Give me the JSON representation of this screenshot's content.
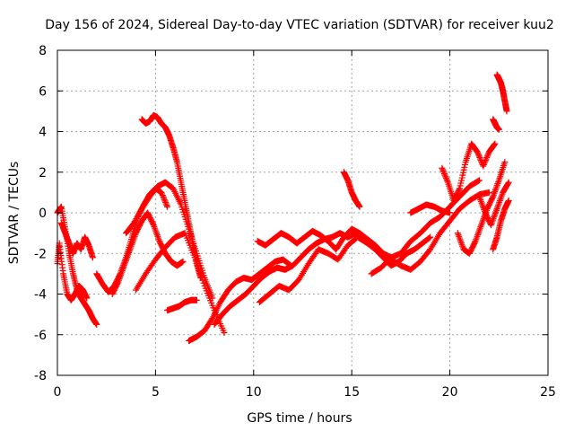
{
  "chart_data": {
    "type": "scatter",
    "title": "Day 156 of 2024, Sidereal Day-to-day VTEC variation (SDTVAR) for receiver kuu2",
    "xlabel": "GPS time / hours",
    "ylabel": "SDTVAR / TECUs",
    "xlim": [
      0,
      25
    ],
    "ylim": [
      -8,
      8
    ],
    "xticks": [
      "0",
      "5",
      "10",
      "15",
      "20",
      "25"
    ],
    "yticks": [
      "8",
      "6",
      "4",
      "2",
      "0",
      "-2",
      "-4",
      "-6",
      "-8"
    ],
    "grid": true,
    "marker": "+",
    "color": "#ff0000",
    "series": [
      {
        "name": "track-1",
        "x": [
          0.0,
          0.2,
          0.4,
          0.6,
          0.8,
          1.0,
          1.2,
          1.4,
          1.6,
          1.8,
          2.0
        ],
        "y": [
          0.0,
          0.3,
          -0.8,
          -2.0,
          -3.0,
          -3.8,
          -4.2,
          -4.5,
          -4.8,
          -5.2,
          -5.5
        ]
      },
      {
        "name": "track-2",
        "x": [
          0.0,
          0.1,
          0.3,
          0.5,
          0.7,
          0.9,
          1.1,
          1.3,
          1.5
        ],
        "y": [
          -2.5,
          -1.5,
          -3.0,
          -4.0,
          -4.3,
          -4.0,
          -3.6,
          -3.8,
          -4.2
        ]
      },
      {
        "name": "track-3",
        "x": [
          0.2,
          0.4,
          0.6,
          0.8,
          1.0,
          1.2,
          1.4,
          1.6,
          1.8
        ],
        "y": [
          -0.5,
          -1.0,
          -1.5,
          -2.0,
          -1.5,
          -1.8,
          -1.2,
          -1.6,
          -2.2
        ]
      },
      {
        "name": "track-4",
        "x": [
          2.0,
          2.3,
          2.6,
          2.9,
          3.2,
          3.5,
          3.8,
          4.1,
          4.4,
          4.7,
          5.0,
          5.3,
          5.6
        ],
        "y": [
          -3.0,
          -3.5,
          -3.9,
          -3.6,
          -3.0,
          -2.2,
          -1.2,
          -0.2,
          0.4,
          0.9,
          1.2,
          1.0,
          0.3
        ]
      },
      {
        "name": "track-5",
        "x": [
          2.8,
          3.1,
          3.4,
          3.7,
          4.0,
          4.3,
          4.6,
          4.9,
          5.2,
          5.5,
          5.8,
          6.1,
          6.4
        ],
        "y": [
          -4.0,
          -3.4,
          -2.6,
          -1.8,
          -1.0,
          -0.4,
          0.0,
          -0.6,
          -1.4,
          -2.0,
          -2.4,
          -2.6,
          -2.4
        ]
      },
      {
        "name": "track-6",
        "x": [
          4.3,
          4.5,
          4.7,
          4.9,
          5.1,
          5.3,
          5.5,
          5.7,
          5.9,
          6.1,
          6.3,
          6.5,
          6.7,
          6.9,
          7.1,
          7.3
        ],
        "y": [
          4.6,
          4.4,
          4.5,
          4.8,
          4.7,
          4.4,
          4.2,
          3.8,
          3.2,
          2.5,
          1.5,
          0.5,
          -0.5,
          -1.5,
          -2.5,
          -3.2
        ]
      },
      {
        "name": "track-7",
        "x": [
          3.5,
          3.9,
          4.3,
          4.7,
          5.1,
          5.5,
          5.9,
          6.3,
          6.7,
          7.1,
          7.5,
          7.9
        ],
        "y": [
          -1.0,
          -0.5,
          0.2,
          0.8,
          1.3,
          1.5,
          1.2,
          0.4,
          -0.8,
          -2.0,
          -3.2,
          -4.2
        ]
      },
      {
        "name": "track-8",
        "x": [
          4.0,
          4.5,
          5.0,
          5.5,
          6.0,
          6.5,
          7.0,
          7.5,
          8.0,
          8.5
        ],
        "y": [
          -3.8,
          -3.0,
          -2.3,
          -1.7,
          -1.2,
          -1.0,
          -2.2,
          -3.6,
          -4.8,
          -5.9
        ]
      },
      {
        "name": "track-9",
        "x": [
          5.6,
          5.9,
          6.2,
          6.5,
          6.8,
          7.1
        ],
        "y": [
          -4.8,
          -4.7,
          -4.6,
          -4.4,
          -4.3,
          -4.3
        ]
      },
      {
        "name": "track-10",
        "x": [
          6.7,
          7.1,
          7.5,
          7.9,
          8.3,
          8.7,
          9.1,
          9.5,
          9.9,
          10.3,
          10.7,
          11.1,
          11.5,
          11.9
        ],
        "y": [
          -6.3,
          -6.1,
          -5.8,
          -5.2,
          -4.4,
          -3.8,
          -3.4,
          -3.2,
          -3.3,
          -3.0,
          -2.7,
          -2.4,
          -2.3,
          -2.6
        ]
      },
      {
        "name": "track-11",
        "x": [
          8.0,
          8.4,
          8.8,
          9.2,
          9.6,
          10.0,
          10.4,
          10.8,
          11.2,
          11.6,
          12.0,
          12.4,
          12.8,
          13.2,
          13.6,
          14.0,
          14.4,
          14.8,
          15.2,
          15.6
        ],
        "y": [
          -5.5,
          -5.0,
          -4.6,
          -4.3,
          -4.0,
          -3.6,
          -3.2,
          -2.9,
          -2.7,
          -2.8,
          -2.6,
          -2.2,
          -1.8,
          -1.5,
          -1.3,
          -1.2,
          -1.0,
          -1.2,
          -1.0,
          -1.3
        ]
      },
      {
        "name": "track-12",
        "x": [
          10.3,
          10.8,
          11.3,
          11.8,
          12.3,
          12.8,
          13.3,
          13.8,
          14.3,
          14.8,
          15.3,
          15.8
        ],
        "y": [
          -4.4,
          -4.0,
          -3.6,
          -3.8,
          -3.3,
          -2.5,
          -1.8,
          -2.0,
          -2.3,
          -1.6,
          -1.2,
          -1.5
        ]
      },
      {
        "name": "track-13",
        "x": [
          10.2,
          10.6,
          11.0,
          11.4,
          11.8,
          12.2,
          12.6,
          13.0,
          13.4,
          13.8,
          14.2,
          14.6,
          15.0,
          15.4,
          15.8,
          16.2,
          16.6,
          17.0
        ],
        "y": [
          -1.4,
          -1.6,
          -1.3,
          -1.0,
          -1.2,
          -1.5,
          -1.2,
          -0.9,
          -1.1,
          -1.4,
          -1.8,
          -1.2,
          -0.8,
          -1.0,
          -1.3,
          -1.6,
          -2.0,
          -2.2
        ]
      },
      {
        "name": "track-14",
        "x": [
          14.6,
          14.8,
          15.0,
          15.2,
          15.4
        ],
        "y": [
          2.0,
          1.6,
          1.0,
          0.6,
          0.3
        ]
      },
      {
        "name": "track-15",
        "x": [
          16.0,
          16.5,
          17.0,
          17.5,
          18.0,
          18.5,
          19.0,
          19.5,
          20.0,
          20.5,
          21.0,
          21.5
        ],
        "y": [
          -3.0,
          -2.7,
          -2.2,
          -2.0,
          -1.4,
          -1.0,
          -0.5,
          -0.2,
          0.3,
          0.8,
          1.3,
          1.6
        ]
      },
      {
        "name": "track-16",
        "x": [
          15.8,
          16.2,
          16.6,
          17.0,
          17.4,
          17.8,
          18.2,
          18.6,
          19.0
        ],
        "y": [
          -1.5,
          -1.8,
          -2.2,
          -2.6,
          -2.4,
          -2.0,
          -1.8,
          -1.5,
          -1.2
        ]
      },
      {
        "name": "track-17",
        "x": [
          17.0,
          17.5,
          18.0,
          18.5,
          19.0,
          19.5,
          20.0,
          20.5,
          21.0,
          21.5,
          22.0
        ],
        "y": [
          -2.3,
          -2.6,
          -2.8,
          -2.4,
          -1.8,
          -1.0,
          -0.4,
          0.2,
          0.6,
          0.9,
          1.0
        ]
      },
      {
        "name": "track-18",
        "x": [
          18.0,
          18.4,
          18.8,
          19.2,
          19.6,
          20.0
        ],
        "y": [
          0.0,
          0.2,
          0.4,
          0.3,
          0.1,
          0.0
        ]
      },
      {
        "name": "track-19",
        "x": [
          19.6,
          19.9,
          20.2,
          20.5,
          20.8,
          21.1,
          21.4,
          21.7,
          22.0,
          22.3
        ],
        "y": [
          2.2,
          1.5,
          0.6,
          1.2,
          2.5,
          3.4,
          3.0,
          2.3,
          3.0,
          3.4
        ]
      },
      {
        "name": "track-20",
        "x": [
          20.4,
          20.7,
          21.0,
          21.3,
          21.6,
          21.9,
          22.2,
          22.5,
          22.8
        ],
        "y": [
          -1.0,
          -1.8,
          -2.0,
          -1.4,
          -0.6,
          0.2,
          0.8,
          1.6,
          2.5
        ]
      },
      {
        "name": "track-21",
        "x": [
          21.5,
          21.8,
          22.1,
          22.4,
          22.7,
          23.0
        ],
        "y": [
          0.8,
          0.0,
          -0.6,
          0.2,
          1.0,
          1.5
        ]
      },
      {
        "name": "track-22",
        "x": [
          22.4,
          22.5,
          22.6,
          22.7,
          22.8,
          22.9
        ],
        "y": [
          6.8,
          6.6,
          6.4,
          6.0,
          5.5,
          5.0
        ]
      },
      {
        "name": "track-23",
        "x": [
          22.2,
          22.3,
          22.4,
          22.5
        ],
        "y": [
          4.6,
          4.4,
          4.2,
          4.1
        ]
      },
      {
        "name": "track-24",
        "x": [
          22.2,
          22.4,
          22.6,
          22.8,
          23.0
        ],
        "y": [
          -1.8,
          -1.2,
          -0.4,
          0.2,
          0.6
        ]
      }
    ]
  }
}
